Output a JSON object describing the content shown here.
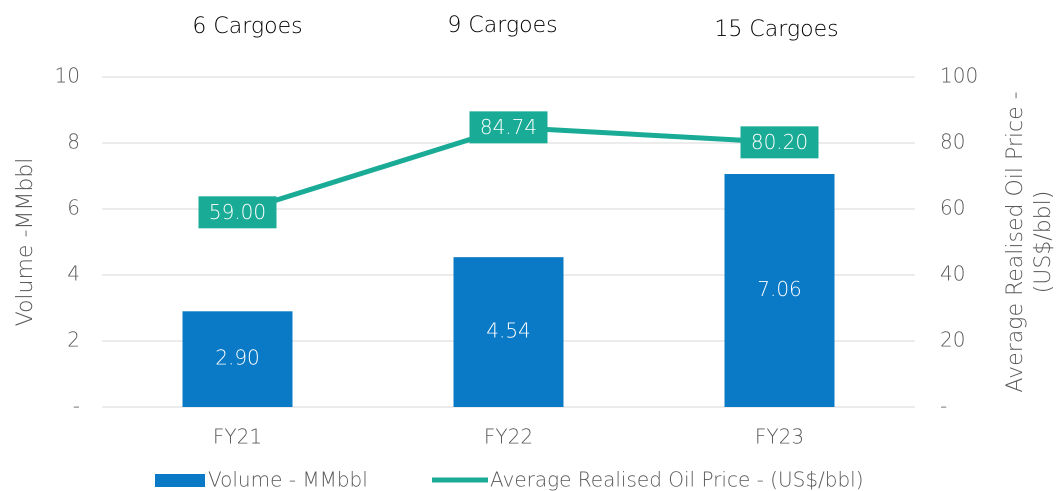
{
  "chart_data": {
    "type": "combo",
    "annotations": [
      "6 Cargoes",
      "9 Cargoes",
      "15 Cargoes"
    ],
    "ylabel": "Volume -MMbbl",
    "y2label": [
      "Average Realised Oil Price -",
      "(US$/bbl)"
    ],
    "categories": [
      "FY21",
      "FY22",
      "FY23"
    ],
    "series": [
      {
        "name": "Volume - MMbbl",
        "type": "bar",
        "color": "#0a79c6",
        "values": [
          2.9,
          4.54,
          7.06
        ],
        "value_labels": [
          "2.90",
          "4.54",
          "7.06"
        ]
      },
      {
        "name": "Average Realised Oil Price - (US$/bbl)",
        "type": "line",
        "axis": "y2",
        "color": "#1aab96",
        "values": [
          59,
          84.74,
          80.2
        ],
        "value_labels": [
          "59.00",
          "84.74",
          "80.20"
        ]
      }
    ],
    "ylim": [
      0,
      10
    ],
    "yticks": [
      {
        "value": 0,
        "label": "-"
      },
      2,
      4,
      6,
      8,
      10
    ],
    "y2lim": [
      0,
      100
    ],
    "y2ticks": [
      {
        "value": 0,
        "label": "-"
      },
      20,
      40,
      60,
      80,
      100
    ],
    "grid": true,
    "legend": "bottom"
  }
}
